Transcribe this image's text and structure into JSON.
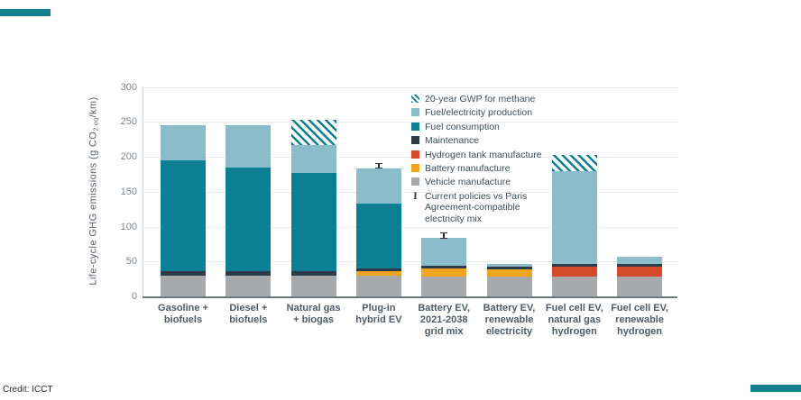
{
  "page": {
    "credit": "Credit: ICCT"
  },
  "chart_data": {
    "type": "bar",
    "subtype": "stacked-bar",
    "title": "",
    "xlabel": "",
    "ylabel": "Life-cycle GHG emissions (g CO2 eq/km)",
    "ylabel_parts": {
      "pre": "Life-cycle GHG emissions (g CO",
      "sub": "2 eq",
      "post": "/km)"
    },
    "ylim": [
      0,
      300
    ],
    "yticks": [
      0,
      50,
      100,
      150,
      200,
      250,
      300
    ],
    "grid": "dotted horizontal",
    "legend_position": "upper right inside plot",
    "categories": [
      "Gasoline +\nbiofuels",
      "Diesel +\nbiofuels",
      "Natural gas\n+ biogas",
      "Plug-in\nhybrid EV",
      "Battery EV,\n2021-2038\ngrid mix",
      "Battery EV,\nrenewable\nelectricity",
      "Fuel cell EV,\nnatural gas\nhydrogen",
      "Fuel cell EV,\nrenewable\nhydrogen"
    ],
    "series": [
      {
        "key": "vehicle_manufacture",
        "name": "Vehicle manufacture",
        "color": "#a7aaac",
        "values": [
          30,
          30,
          30,
          30,
          28,
          28,
          28,
          28
        ]
      },
      {
        "key": "battery_manufacture",
        "name": "Battery manufacture",
        "color": "#f0a51e",
        "values": [
          0,
          0,
          0,
          6,
          12,
          11,
          0,
          0
        ]
      },
      {
        "key": "hydrogen_tank_manufacture",
        "name": "Hydrogen tank manufacture",
        "color": "#d54a28",
        "values": [
          0,
          0,
          0,
          0,
          0,
          0,
          15,
          15
        ]
      },
      {
        "key": "maintenance",
        "name": "Maintenance",
        "color": "#2e3c49",
        "values": [
          6,
          6,
          6,
          4,
          4,
          4,
          4,
          4
        ]
      },
      {
        "key": "fuel_consumption",
        "name": "Fuel consumption",
        "color": "#0b7f93",
        "values": [
          159,
          149,
          141,
          93,
          0,
          0,
          0,
          0
        ]
      },
      {
        "key": "fuel_electricity_production",
        "name": "Fuel/electricity production",
        "color": "#8bbcc9",
        "values": [
          50,
          60,
          40,
          50,
          40,
          4,
          133,
          10
        ]
      },
      {
        "key": "methane_gwp_20yr",
        "name": "20-year GWP for methane",
        "color": "hatch",
        "values": [
          0,
          0,
          36,
          0,
          0,
          0,
          23,
          0
        ]
      }
    ],
    "bar_totals": [
      245,
      245,
      253,
      183,
      84,
      47,
      203,
      57
    ],
    "error_bars": [
      {
        "category_index": 3,
        "center": 187,
        "half": 4
      },
      {
        "category_index": 4,
        "center": 87,
        "half": 5
      }
    ],
    "legend": [
      {
        "label": "20-year GWP for methane",
        "swatch": "hatch"
      },
      {
        "label": "Fuel/electricity production",
        "swatch": "color",
        "color": "#8bbcc9"
      },
      {
        "label": "Fuel consumption",
        "swatch": "color",
        "color": "#0b7f93"
      },
      {
        "label": "Maintenance",
        "swatch": "color",
        "color": "#2e3c49"
      },
      {
        "label": "Hydrogen tank manufacture",
        "swatch": "color",
        "color": "#d54a28"
      },
      {
        "label": "Battery manufacture",
        "swatch": "color",
        "color": "#f0a51e"
      },
      {
        "label": "Vehicle manufacture",
        "swatch": "color",
        "color": "#a7aaac"
      },
      {
        "label": "Current policies vs Paris\nAgreement-compatible\nelectricity mix",
        "swatch": "errorbar"
      }
    ]
  }
}
